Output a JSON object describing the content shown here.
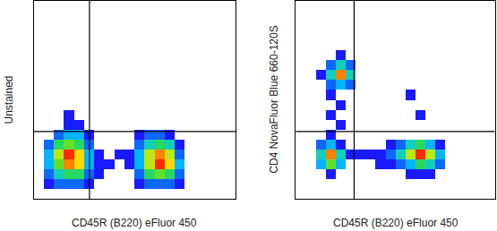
{
  "chart_data": [
    {
      "type": "heatmap",
      "x_label": "CD45R (B220) eFluor 450",
      "y_label": "Unstained",
      "xlim": [
        0,
        100
      ],
      "ylim": [
        0,
        100
      ],
      "tick_labels": false,
      "grid": false,
      "gates": {
        "x": 27.6,
        "y": 34
      },
      "x": [
        2.5,
        7.5,
        12.5,
        17.5,
        22.5,
        27.5,
        32.5,
        37.5,
        42.5,
        47.5,
        52.5,
        57.5,
        62.5,
        67.5,
        72.5,
        77.5,
        82.5,
        87.5,
        92.5,
        97.5
      ],
      "y": [
        2.5,
        7.5,
        12.5,
        17.5,
        22.5,
        27.5,
        32.5,
        37.5,
        42.5,
        47.5,
        52.5,
        57.5,
        62.5,
        67.5,
        72.5,
        77.5,
        82.5,
        87.5,
        92.5,
        97.5
      ],
      "density": [
        [
          null,
          null,
          null,
          null,
          null,
          null,
          null,
          null,
          null,
          null,
          null,
          null,
          null,
          null,
          null,
          null,
          null,
          null,
          null,
          null
        ],
        [
          null,
          1,
          2,
          2,
          2,
          1,
          null,
          null,
          null,
          null,
          1,
          2,
          2,
          2,
          1,
          null,
          null,
          null,
          null,
          null
        ],
        [
          null,
          2,
          4,
          5,
          5,
          2,
          1,
          null,
          null,
          null,
          2,
          5,
          6,
          5,
          2,
          null,
          null,
          null,
          null,
          null
        ],
        [
          null,
          3,
          6,
          9,
          8,
          3,
          1,
          1,
          null,
          1,
          3,
          7,
          10,
          8,
          3,
          null,
          null,
          null,
          null,
          null
        ],
        [
          null,
          3,
          7,
          10,
          8,
          3,
          1,
          null,
          1,
          1,
          3,
          7,
          9,
          7,
          2,
          null,
          null,
          null,
          null,
          null
        ],
        [
          null,
          2,
          5,
          6,
          5,
          2,
          null,
          null,
          null,
          null,
          2,
          4,
          5,
          4,
          1,
          null,
          null,
          null,
          null,
          null
        ],
        [
          null,
          null,
          2,
          3,
          3,
          1,
          null,
          null,
          null,
          null,
          1,
          2,
          2,
          1,
          null,
          null,
          null,
          null,
          null,
          null
        ],
        [
          null,
          null,
          null,
          1,
          1,
          null,
          null,
          null,
          null,
          null,
          null,
          null,
          null,
          null,
          null,
          null,
          null,
          null,
          null,
          null
        ],
        [
          null,
          null,
          null,
          1,
          null,
          null,
          null,
          null,
          null,
          null,
          null,
          null,
          null,
          null,
          null,
          null,
          null,
          null,
          null,
          null
        ],
        [
          null,
          null,
          null,
          null,
          null,
          null,
          null,
          null,
          null,
          null,
          null,
          null,
          null,
          null,
          null,
          null,
          null,
          null,
          null,
          null
        ],
        [
          null,
          null,
          null,
          null,
          null,
          null,
          null,
          null,
          null,
          null,
          null,
          null,
          null,
          null,
          null,
          null,
          null,
          null,
          null,
          null
        ],
        [
          null,
          null,
          null,
          null,
          null,
          null,
          null,
          null,
          null,
          null,
          null,
          null,
          null,
          null,
          null,
          null,
          null,
          null,
          null,
          null
        ],
        [
          null,
          null,
          null,
          null,
          null,
          null,
          null,
          null,
          null,
          null,
          null,
          null,
          null,
          null,
          null,
          null,
          null,
          null,
          null,
          null
        ],
        [
          null,
          null,
          null,
          null,
          null,
          null,
          null,
          null,
          null,
          null,
          null,
          null,
          null,
          null,
          null,
          null,
          null,
          null,
          null,
          null
        ],
        [
          null,
          null,
          null,
          null,
          null,
          null,
          null,
          null,
          null,
          null,
          null,
          null,
          null,
          null,
          null,
          null,
          null,
          null,
          null,
          null
        ],
        [
          null,
          null,
          null,
          null,
          null,
          null,
          null,
          null,
          null,
          null,
          null,
          null,
          null,
          null,
          null,
          null,
          null,
          null,
          null,
          null
        ],
        [
          null,
          null,
          null,
          null,
          null,
          null,
          null,
          null,
          null,
          null,
          null,
          null,
          null,
          null,
          null,
          null,
          null,
          null,
          null,
          null
        ],
        [
          null,
          null,
          null,
          null,
          null,
          null,
          null,
          null,
          null,
          null,
          null,
          null,
          null,
          null,
          null,
          null,
          null,
          null,
          null,
          null
        ],
        [
          null,
          null,
          null,
          null,
          null,
          null,
          null,
          null,
          null,
          null,
          null,
          null,
          null,
          null,
          null,
          null,
          null,
          null,
          null,
          null
        ],
        [
          null,
          null,
          null,
          null,
          null,
          null,
          null,
          null,
          null,
          null,
          null,
          null,
          null,
          null,
          null,
          null,
          null,
          null,
          null,
          null
        ]
      ]
    },
    {
      "type": "heatmap",
      "x_label": "CD45R (B220) eFluor 450",
      "y_label": "CD4 NovaFluor Blue 660-120S",
      "xlim": [
        0,
        100
      ],
      "ylim": [
        0,
        100
      ],
      "tick_labels": false,
      "grid": false,
      "gates": {
        "x": 29.3,
        "y": 34
      },
      "x": [
        2.5,
        7.5,
        12.5,
        17.5,
        22.5,
        27.5,
        32.5,
        37.5,
        42.5,
        47.5,
        52.5,
        57.5,
        62.5,
        67.5,
        72.5,
        77.5,
        82.5,
        87.5,
        92.5,
        97.5
      ],
      "y": [
        2.5,
        7.5,
        12.5,
        17.5,
        22.5,
        27.5,
        32.5,
        37.5,
        42.5,
        47.5,
        52.5,
        57.5,
        62.5,
        67.5,
        72.5,
        77.5,
        82.5,
        87.5,
        92.5,
        97.5
      ],
      "density": [
        [
          null,
          null,
          null,
          null,
          null,
          null,
          null,
          null,
          null,
          null,
          null,
          null,
          null,
          null,
          null,
          null,
          null,
          null,
          null,
          null
        ],
        [
          null,
          null,
          null,
          null,
          null,
          null,
          null,
          null,
          null,
          null,
          null,
          null,
          null,
          null,
          null,
          null,
          null,
          null,
          null,
          null
        ],
        [
          null,
          null,
          null,
          1,
          null,
          null,
          null,
          null,
          null,
          null,
          null,
          1,
          1,
          1,
          null,
          null,
          null,
          null,
          null,
          null
        ],
        [
          null,
          null,
          3,
          6,
          3,
          null,
          null,
          null,
          1,
          1,
          2,
          3,
          5,
          4,
          2,
          null,
          null,
          null,
          null,
          null
        ],
        [
          null,
          null,
          4,
          9,
          4,
          1,
          1,
          1,
          1,
          2,
          4,
          7,
          10,
          7,
          3,
          null,
          null,
          null,
          null,
          null
        ],
        [
          null,
          null,
          2,
          3,
          1,
          null,
          null,
          null,
          null,
          1,
          2,
          4,
          5,
          3,
          1,
          null,
          null,
          null,
          null,
          null
        ],
        [
          null,
          null,
          null,
          1,
          null,
          null,
          null,
          null,
          null,
          null,
          null,
          null,
          null,
          null,
          null,
          null,
          null,
          null,
          null,
          null
        ],
        [
          null,
          null,
          null,
          null,
          1,
          null,
          null,
          null,
          null,
          null,
          null,
          null,
          null,
          null,
          null,
          null,
          null,
          null,
          null,
          null
        ],
        [
          null,
          null,
          null,
          1,
          null,
          null,
          null,
          null,
          null,
          null,
          null,
          null,
          1,
          null,
          null,
          null,
          null,
          null,
          null,
          null
        ],
        [
          null,
          null,
          null,
          null,
          1,
          null,
          null,
          null,
          null,
          null,
          null,
          null,
          null,
          null,
          null,
          null,
          null,
          null,
          null,
          null
        ],
        [
          null,
          null,
          null,
          1,
          null,
          null,
          null,
          null,
          null,
          null,
          null,
          1,
          null,
          null,
          null,
          null,
          null,
          null,
          null,
          null
        ],
        [
          null,
          null,
          null,
          2,
          3,
          2,
          null,
          null,
          null,
          null,
          null,
          null,
          null,
          null,
          null,
          null,
          null,
          null,
          null,
          null
        ],
        [
          null,
          null,
          1,
          4,
          9,
          4,
          null,
          null,
          null,
          null,
          null,
          null,
          null,
          null,
          null,
          null,
          null,
          null,
          null,
          null
        ],
        [
          null,
          null,
          null,
          2,
          4,
          2,
          null,
          null,
          null,
          null,
          null,
          null,
          null,
          null,
          null,
          null,
          null,
          null,
          null,
          null
        ],
        [
          null,
          null,
          null,
          null,
          1,
          null,
          null,
          null,
          null,
          null,
          null,
          null,
          null,
          null,
          null,
          null,
          null,
          null,
          null,
          null
        ],
        [
          null,
          null,
          null,
          null,
          null,
          null,
          null,
          null,
          null,
          null,
          null,
          null,
          null,
          null,
          null,
          null,
          null,
          null,
          null,
          null
        ],
        [
          null,
          null,
          null,
          null,
          null,
          null,
          null,
          null,
          null,
          null,
          null,
          null,
          null,
          null,
          null,
          null,
          null,
          null,
          null,
          null
        ],
        [
          null,
          null,
          null,
          null,
          null,
          null,
          null,
          null,
          null,
          null,
          null,
          null,
          null,
          null,
          null,
          null,
          null,
          null,
          null,
          null
        ],
        [
          null,
          null,
          null,
          null,
          null,
          null,
          null,
          null,
          null,
          null,
          null,
          null,
          null,
          null,
          null,
          null,
          null,
          null,
          null,
          null
        ],
        [
          null,
          null,
          null,
          null,
          null,
          null,
          null,
          null,
          null,
          null,
          null,
          null,
          null,
          null,
          null,
          null,
          null,
          null,
          null,
          null
        ]
      ]
    }
  ]
}
